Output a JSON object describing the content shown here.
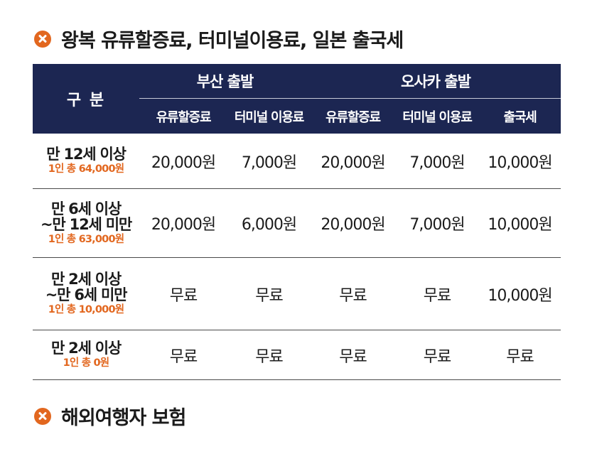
{
  "sections": [
    {
      "title": "왕복 유류할증료, 터미널이용료, 일본 출국세",
      "icon": "x-circle-icon"
    },
    {
      "title": "해외여행자 보험",
      "icon": "x-circle-icon"
    }
  ],
  "table": {
    "header": {
      "category": "구 분",
      "groups": [
        "부산 출발",
        "오사카 출발"
      ],
      "columns": [
        "유류할증료",
        "터미널 이용료",
        "유류할증료",
        "터미널 이용료",
        "출국세"
      ]
    },
    "rows": [
      {
        "age_line1": "만 12세 이상",
        "age_line2": "",
        "total": "1인 총 64,000원",
        "values": [
          "20,000원",
          "7,000원",
          "20,000원",
          "7,000원",
          "10,000원"
        ]
      },
      {
        "age_line1": "만 6세 이상",
        "age_line2": "~만 12세 미만",
        "total": "1인 총 63,000원",
        "values": [
          "20,000원",
          "6,000원",
          "20,000원",
          "7,000원",
          "10,000원"
        ]
      },
      {
        "age_line1": "만 2세 이상",
        "age_line2": "~만 6세 미만",
        "total": "1인 총 10,000원",
        "values": [
          "무료",
          "무료",
          "무료",
          "무료",
          "10,000원"
        ]
      },
      {
        "age_line1": "만 2세 이상",
        "age_line2": "",
        "total": "1인 총 0원",
        "values": [
          "무료",
          "무료",
          "무료",
          "무료",
          "무료"
        ]
      }
    ]
  },
  "colors": {
    "navy_header": "#1c2652",
    "accent_orange": "#e2671f"
  }
}
